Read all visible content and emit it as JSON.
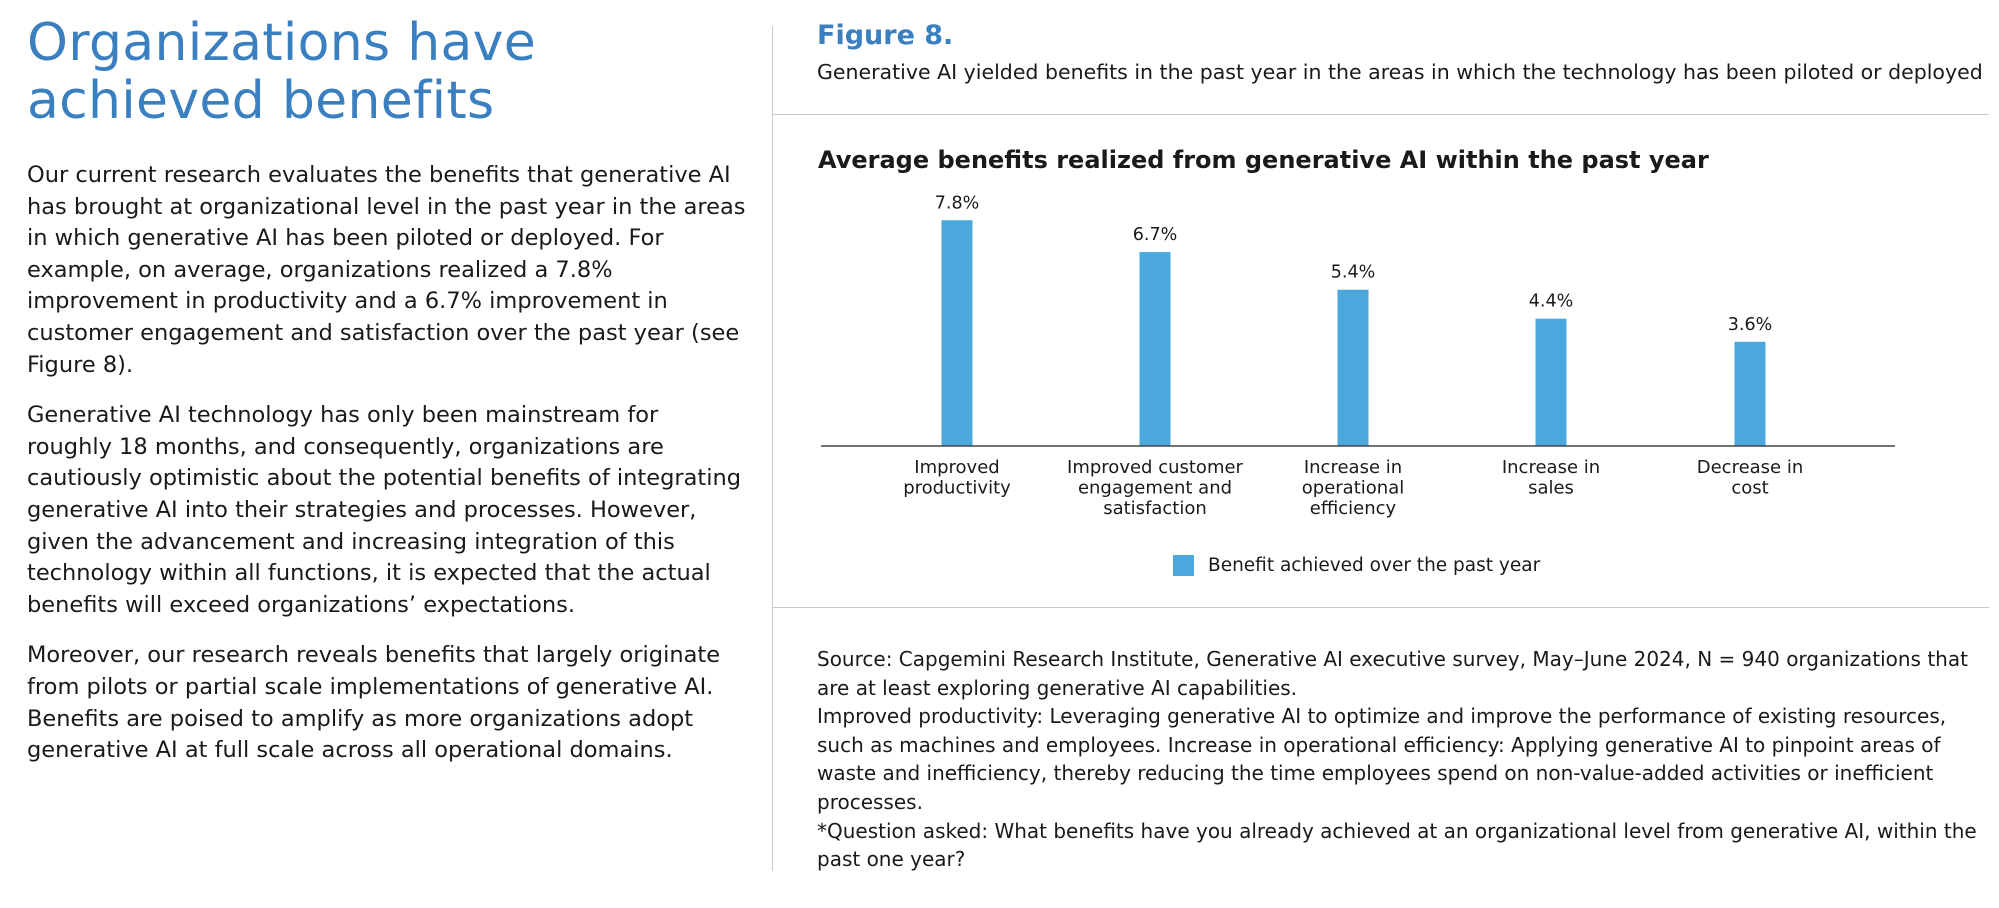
{
  "left": {
    "heading_line1": "Organizations have",
    "heading_line2": "achieved benefits",
    "paragraphs": [
      "Our current research evaluates the benefits that generative AI has brought at organizational level in the past year in the areas in which generative AI has been piloted or deployed. For example, on average, organizations realized a 7.8% improvement in productivity and a 6.7% improvement in customer engagement and satisfaction over the past year (see Figure 8).",
      "Generative AI technology has only been mainstream for roughly 18 months, and consequently, organizations are cautiously optimistic about the potential benefits of integrating generative AI into their strategies and processes. However, given the advancement and increasing integration of this technology within all functions, it is expected that the actual benefits will exceed organizations’ expectations.",
      "Moreover, our research reveals benefits that largely originate from pilots or partial scale implementations of generative AI. Benefits are poised to amplify as more organizations adopt generative AI at full scale across all operational domains."
    ]
  },
  "figure": {
    "label": "Figure 8.",
    "subtitle": "Generative AI yielded benefits in the past year in the areas in which the technology has been piloted or deployed"
  },
  "chart_data": {
    "type": "bar",
    "title": "Average benefits realized from generative AI within the past year",
    "categories": [
      [
        "Improved",
        "productivity"
      ],
      [
        "Improved customer",
        "engagement and",
        "satisfaction"
      ],
      [
        "Increase in",
        "operational",
        "efficiency"
      ],
      [
        "Increase in",
        "sales"
      ],
      [
        "Decrease in",
        "cost"
      ]
    ],
    "values": [
      7.8,
      6.7,
      5.4,
      4.4,
      3.6
    ],
    "value_labels": [
      "7.8%",
      "6.7%",
      "5.4%",
      "4.4%",
      "3.6%"
    ],
    "series_name": "Benefit achieved over the past year",
    "ylim": [
      0,
      8.5
    ],
    "xlabel": "",
    "ylabel": "",
    "grid": false,
    "legend_position": "bottom-center",
    "color": "#4aa8dc"
  },
  "source": {
    "lines": [
      "Source: Capgemini Research Institute, Generative AI executive survey, May–June 2024, N = 940 organizations that are at least exploring generative AI capabilities.",
      "Improved productivity: Leveraging generative AI to optimize and improve the performance of existing resources, such as machines and employees. Increase in operational efficiency: Applying generative AI to pinpoint areas of waste and inefficiency, thereby reducing the time employees spend on non-value-added activities or inefficient processes.",
      "*Question asked: What benefits have you already achieved at an organizational level from generative AI, within the past one year?"
    ]
  }
}
